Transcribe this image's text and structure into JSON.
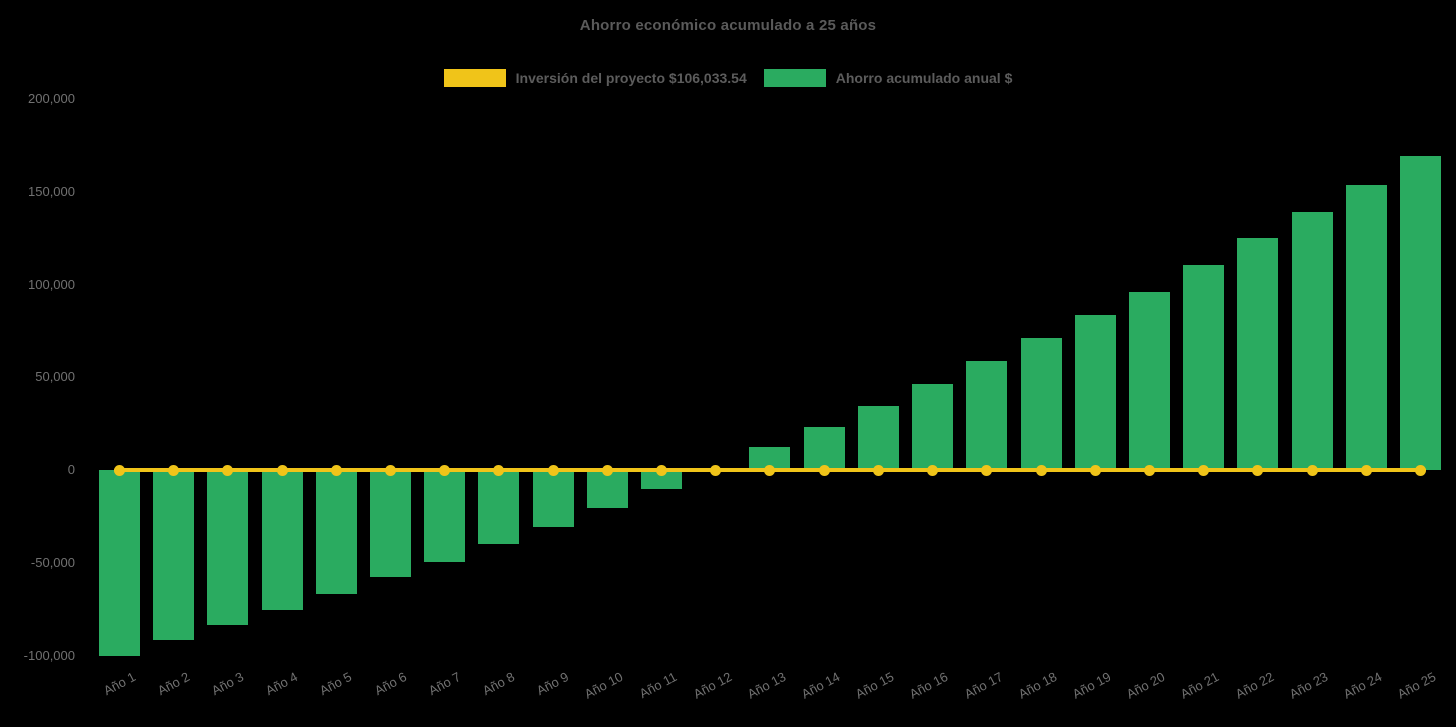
{
  "chart_data": {
    "type": "bar",
    "title": "Ahorro económico acumulado a 25 años",
    "background_color": "#000000",
    "text_colors": {
      "title": "#5a5a5a",
      "legend": "#5c5c5c",
      "axis_labels": "#717171"
    },
    "legend_position": "top",
    "grid": false,
    "categories": [
      "Año 1",
      "Año 2",
      "Año 3",
      "Año 4",
      "Año 5",
      "Año 6",
      "Año 7",
      "Año 8",
      "Año 9",
      "Año 10",
      "Año 11",
      "Año 12",
      "Año 13",
      "Año 14",
      "Año 15",
      "Año 16",
      "Año 17",
      "Año 18",
      "Año 19",
      "Año 20",
      "Año 21",
      "Año 22",
      "Año 23",
      "Año 24",
      "Año 25"
    ],
    "series": [
      {
        "name": "Inversión del proyecto $106,033.54",
        "type": "line",
        "color": "#F0C419",
        "marker": "circle",
        "values": [
          0,
          0,
          0,
          0,
          0,
          0,
          0,
          0,
          0,
          0,
          0,
          0,
          0,
          0,
          0,
          0,
          0,
          0,
          0,
          0,
          0,
          0,
          0,
          0,
          0
        ]
      },
      {
        "name": "Ahorro acumulado anual $",
        "type": "bar",
        "color": "#2AAB60",
        "values": [
          -100000,
          -91900,
          -83400,
          -75600,
          -66600,
          -57900,
          -49600,
          -40100,
          -30900,
          -20600,
          -10400,
          700,
          12400,
          23200,
          34600,
          46500,
          58900,
          71300,
          83800,
          96200,
          110300,
          124900,
          138900,
          153500,
          169200
        ]
      }
    ],
    "xlabel": "",
    "ylabel": "",
    "ylim": [
      -100000,
      200000
    ],
    "yticks": [
      {
        "value": 200000,
        "label": "200,000"
      },
      {
        "value": 150000,
        "label": "150,000"
      },
      {
        "value": 100000,
        "label": "100,000"
      },
      {
        "value": 50000,
        "label": "50,000"
      },
      {
        "value": 0,
        "label": "0"
      },
      {
        "value": -50000,
        "label": "-50,000"
      },
      {
        "value": -100000,
        "label": "-100,000"
      }
    ]
  }
}
